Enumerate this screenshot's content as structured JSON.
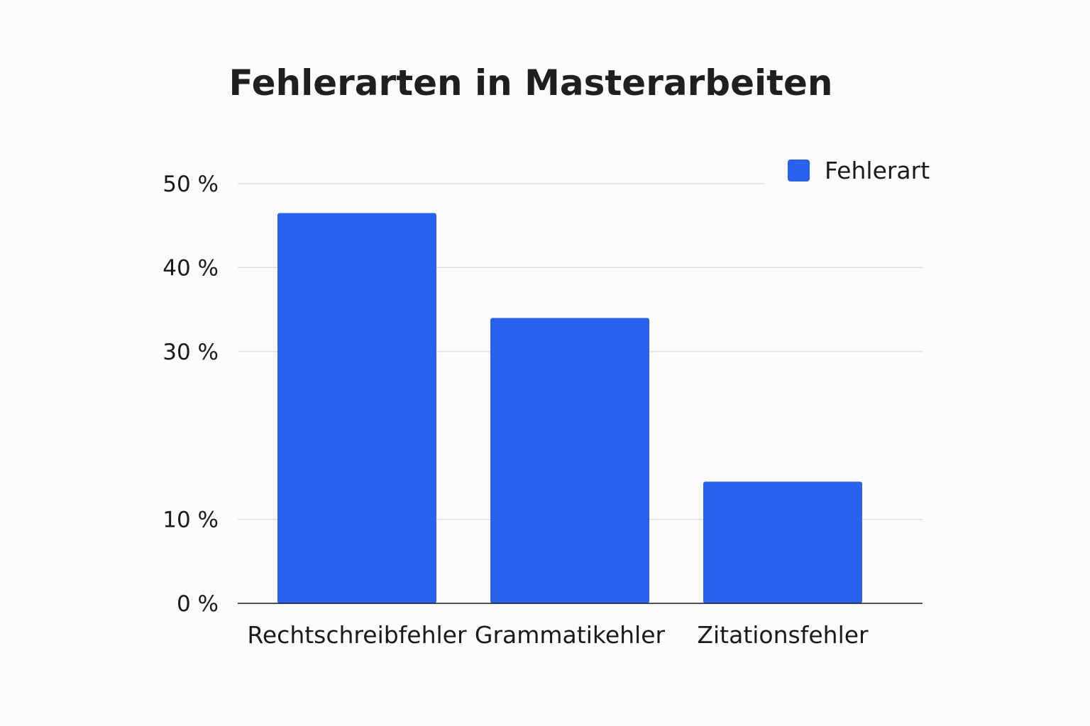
{
  "chart_data": {
    "type": "bar",
    "title": "Fehlerarten in Masterarbeiten",
    "xlabel": "",
    "ylabel": "",
    "categories": [
      "Rechtschreibfehler",
      "Grammatikehler",
      "Zitationsfehler"
    ],
    "series": [
      {
        "name": "Fehlerart",
        "values": [
          46.5,
          34,
          14.5
        ],
        "color": "#2962ee"
      }
    ],
    "yticks": [
      {
        "value": 0,
        "label": "0 %"
      },
      {
        "value": 10,
        "label": "10 %"
      },
      {
        "value": 30,
        "label": "30 %"
      },
      {
        "value": 40,
        "label": "40 %"
      },
      {
        "value": 50,
        "label": "50 %"
      }
    ],
    "ylim": [
      0,
      50
    ],
    "grid": true,
    "legend_position": "top-right",
    "colors": {
      "bar": "#2962ee",
      "grid": "#d9d9d9",
      "axis": "#1a1a1a",
      "background": "#fcfcfc"
    }
  }
}
